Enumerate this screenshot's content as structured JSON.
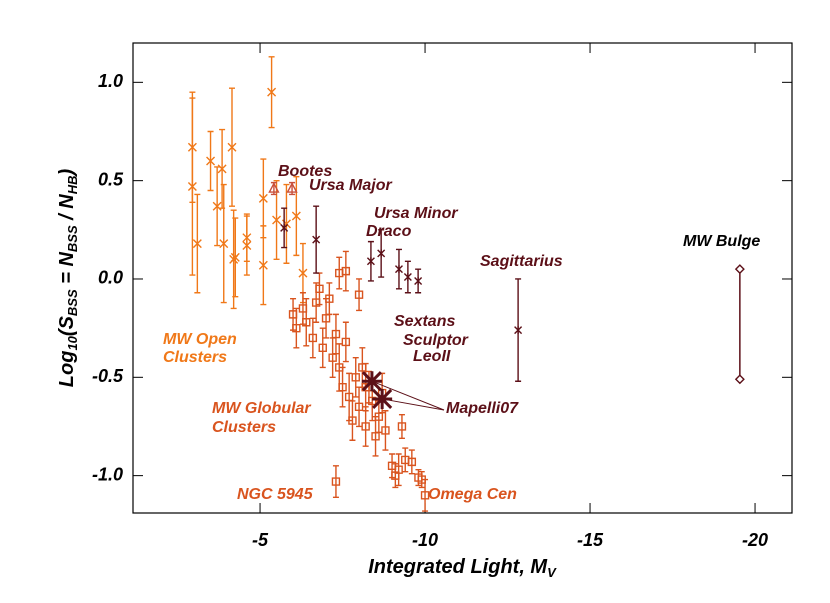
{
  "chart_data": {
    "type": "scatter",
    "xlabel": [
      "Integrated Light, M",
      "V"
    ],
    "ylabel": [
      "Log",
      "10",
      "(S",
      "BSS",
      " = N",
      "BSS",
      " / N",
      "HB",
      ")"
    ],
    "xlim": [
      -1.15,
      -21.12
    ],
    "ylim": [
      -1.19,
      1.2
    ],
    "xticks": [
      -5,
      -10,
      -15,
      -20
    ],
    "yticks": [
      {
        "value": 1,
        "label": "1.0"
      },
      {
        "value": 0.5,
        "label": "0.5"
      },
      {
        "value": 0,
        "label": "0.0"
      },
      {
        "value": -0.5,
        "label": "-0.5"
      },
      {
        "value": -1,
        "label": "-1.0"
      }
    ],
    "series": [
      {
        "color": "#f07818",
        "marker": "x",
        "x": [
          -2.95,
          -2.95,
          -3.1,
          -3.5,
          -3.7,
          -3.85,
          -3.9,
          -4.15,
          -4.2,
          -4.25,
          -4.6,
          -4.6,
          -5.1,
          -5.1,
          -5.35,
          -5.5,
          -5.8,
          -6.1,
          -6.3
        ],
        "values": [
          0.67,
          0.47,
          0.18,
          0.6,
          0.37,
          0.56,
          0.18,
          0.67,
          0.1,
          0.11,
          0.21,
          0.17,
          0.41,
          0.07,
          0.95,
          0.3,
          0.28,
          0.32,
          0.03
        ],
        "errors": [
          0.28,
          0.45,
          0.25,
          0.15,
          0.2,
          0.2,
          0.3,
          0.3,
          0.25,
          0.2,
          0.12,
          0.15,
          0.2,
          0.2,
          0.18,
          0.2,
          0.2,
          0.2,
          0.15
        ]
      },
      {
        "color": "#d9541e",
        "marker": "square",
        "x": [
          -6.0,
          -6.1,
          -6.3,
          -6.4,
          -6.6,
          -6.7,
          -6.8,
          -6.9,
          -7.0,
          -7.1,
          -7.2,
          -7.3,
          -7.4,
          -7.4,
          -7.5,
          -7.6,
          -7.6,
          -7.7,
          -7.8,
          -7.9,
          -8.0,
          -8.0,
          -8.1,
          -8.2,
          -8.3,
          -8.4,
          -8.5,
          -8.6,
          -8.7,
          -8.8,
          -9.0,
          -9.1,
          -9.2,
          -9.3,
          -9.4,
          -9.6,
          -9.8,
          -9.9,
          -7.3,
          -8.2,
          -10.0
        ],
        "values": [
          -0.18,
          -0.25,
          -0.15,
          -0.22,
          -0.3,
          -0.12,
          -0.05,
          -0.35,
          -0.2,
          -0.1,
          -0.4,
          -0.28,
          0.03,
          -0.45,
          -0.55,
          -0.32,
          0.04,
          -0.6,
          -0.72,
          -0.5,
          -0.08,
          -0.65,
          -0.45,
          -0.75,
          -0.55,
          -0.62,
          -0.8,
          -0.7,
          -0.58,
          -0.77,
          -0.95,
          -1.0,
          -0.97,
          -0.75,
          -0.92,
          -0.93,
          -1.01,
          -1.02,
          -1.03,
          -0.55,
          -1.1
        ],
        "errors": [
          0.08,
          0.1,
          0.08,
          0.12,
          0.1,
          0.1,
          0.08,
          0.1,
          0.1,
          0.08,
          0.1,
          0.1,
          0.08,
          0.12,
          0.1,
          0.1,
          0.1,
          0.12,
          0.1,
          0.1,
          0.08,
          0.1,
          0.1,
          0.1,
          0.08,
          0.1,
          0.1,
          0.08,
          0.1,
          0.1,
          0.06,
          0.06,
          0.08,
          0.06,
          0.06,
          0.06,
          0.04,
          0.04,
          0.08,
          0.12,
          0.08
        ]
      },
      {
        "color": "#c8503c",
        "marker": "triangle",
        "x": [
          -5.42,
          -5.97
        ],
        "values": [
          0.46,
          0.46
        ],
        "errors": [
          0.03,
          0.03
        ]
      },
      {
        "color": "#5c1018",
        "marker": "asterisk",
        "x": [
          -5.73,
          -6.7,
          -8.36,
          -8.67,
          -9.21,
          -9.48,
          -9.79,
          -12.82
        ],
        "values": [
          0.26,
          0.2,
          0.09,
          0.13,
          0.05,
          0.01,
          -0.01,
          -0.26
        ],
        "errors": [
          0.1,
          0.17,
          0.1,
          0.12,
          0.1,
          0.08,
          0.06,
          0.26
        ]
      },
      {
        "color": "#5c1018",
        "marker": "diamond",
        "connect": true,
        "x": [
          -19.54,
          -19.54
        ],
        "values": [
          0.05,
          -0.51
        ]
      },
      {
        "color": "#5c1018",
        "marker": "star",
        "x": [
          -8.39,
          -8.7
        ],
        "values": [
          -0.52,
          -0.61
        ]
      }
    ],
    "annotations": [
      {
        "text": "Bootes",
        "color": "#5c1018"
      },
      {
        "text": "Ursa Major",
        "color": "#5c1018"
      },
      {
        "text": "Ursa Minor",
        "color": "#5c1018"
      },
      {
        "text": "Draco",
        "color": "#5c1018"
      },
      {
        "text": "Sagittarius",
        "color": "#5c1018"
      },
      {
        "text": "MW Bulge",
        "color": "#000000"
      },
      {
        "text": "Sextans",
        "color": "#5c1018"
      },
      {
        "text": "Sculptor",
        "color": "#5c1018"
      },
      {
        "text": "LeoII",
        "color": "#5c1018"
      },
      {
        "text": "Mapelli07",
        "color": "#5c1018"
      },
      {
        "text": "MW Open",
        "color": "#f07818"
      },
      {
        "text": "Clusters",
        "color": "#f07818"
      },
      {
        "text": "MW Globular",
        "color": "#d9541e"
      },
      {
        "text": "Clusters",
        "color": "#d9541e"
      },
      {
        "text": "NGC 5945",
        "color": "#d9541e"
      },
      {
        "text": "Omega Cen",
        "color": "#d9541e"
      }
    ]
  }
}
